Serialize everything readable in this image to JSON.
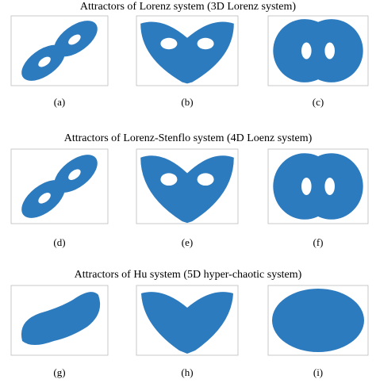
{
  "sections": [
    {
      "title": "Attractors of Lorenz system (3D Lorenz system)",
      "panels": [
        "(a)",
        "(b)",
        "(c)"
      ]
    },
    {
      "title": "Attractors of Lorenz-Stenflo system (4D Loenz system)",
      "panels": [
        "(d)",
        "(e)",
        "(f)"
      ]
    },
    {
      "title": "Attractors of Hu system (5D hyper-chaotic system)",
      "panels": [
        "(g)",
        "(h)",
        "(i)"
      ]
    }
  ]
}
